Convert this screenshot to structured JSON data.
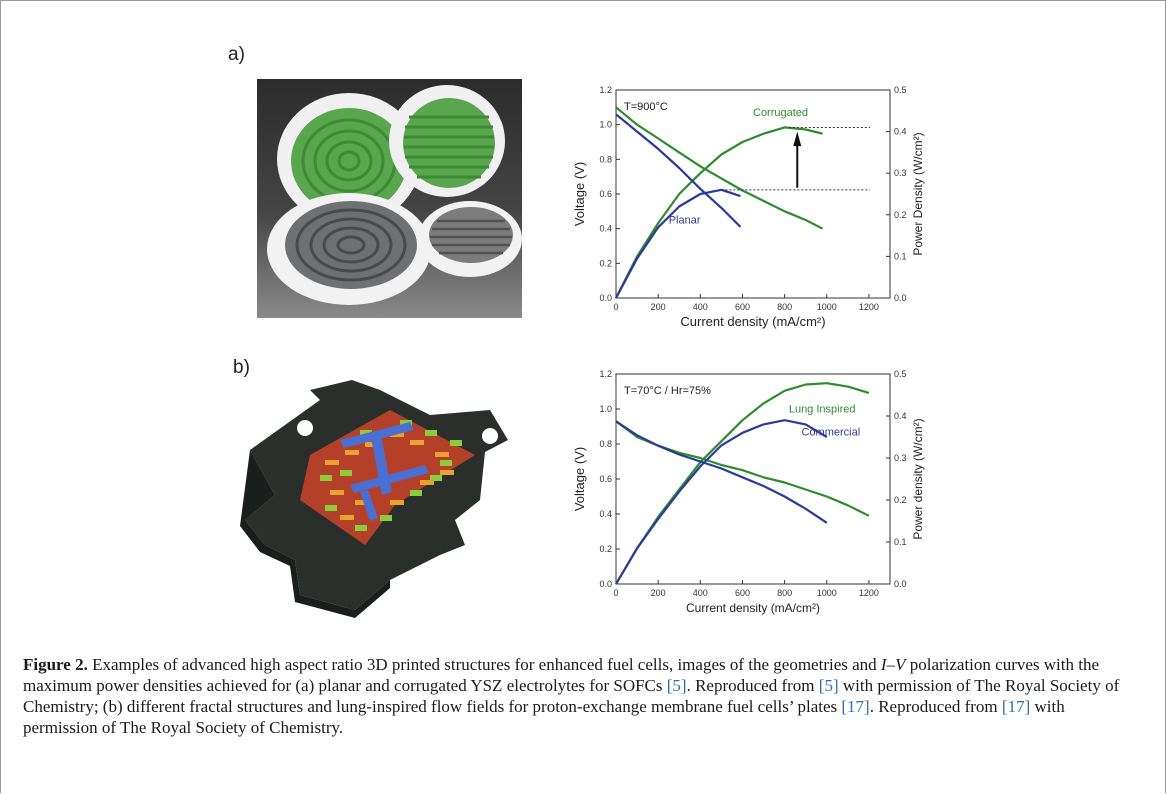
{
  "panels": {
    "a": {
      "label": "a)",
      "photo": {
        "icon": "fuel-cell-electrolyte-discs-photo",
        "colors": {
          "green": "#5aa64e",
          "white": "#f2f2f2",
          "grey": "#7c7c7c"
        }
      },
      "chart_data": {
        "type": "line",
        "title": "",
        "annotation": "T=900°C",
        "xlabel": "Current density (mA/cm²)",
        "ylabel": "Voltage (V)",
        "y2label": "Power Density (W/cm²)",
        "xlim": [
          0,
          1300
        ],
        "ylim": [
          0,
          1.2
        ],
        "y2lim": [
          0,
          0.5
        ],
        "xticks": [
          "0",
          "200",
          "400",
          "600",
          "800",
          "1000",
          "1200"
        ],
        "yticks": [
          "0.0",
          "0.2",
          "0.4",
          "0.6",
          "0.8",
          "1.0",
          "1.2"
        ],
        "y2ticks": [
          "0.0",
          "0.1",
          "0.2",
          "0.3",
          "0.4",
          "0.5"
        ],
        "series": [
          {
            "name": "Corrugated",
            "color": "#2e8b2e",
            "axis": "voltage",
            "x": [
              0,
              100,
              200,
              300,
              400,
              500,
              600,
              700,
              800,
              900,
              980
            ],
            "y": [
              1.1,
              1.0,
              0.92,
              0.84,
              0.76,
              0.69,
              0.62,
              0.56,
              0.5,
              0.45,
              0.4
            ]
          },
          {
            "name": "Corrugated",
            "color": "#2e8b2e",
            "axis": "power",
            "x": [
              0,
              100,
              200,
              300,
              400,
              500,
              600,
              700,
              800,
              900,
              980
            ],
            "y": [
              0.0,
              0.1,
              0.18,
              0.25,
              0.3,
              0.345,
              0.375,
              0.395,
              0.41,
              0.405,
              0.395
            ]
          },
          {
            "name": "Planar",
            "color": "#2b3a9a",
            "axis": "voltage",
            "x": [
              0,
              100,
              200,
              300,
              400,
              500,
              590
            ],
            "y": [
              1.06,
              0.96,
              0.86,
              0.75,
              0.63,
              0.52,
              0.41
            ]
          },
          {
            "name": "Planar",
            "color": "#2b3a9a",
            "axis": "power",
            "x": [
              0,
              100,
              200,
              300,
              400,
              500,
              590
            ],
            "y": [
              0.0,
              0.095,
              0.17,
              0.22,
              0.25,
              0.26,
              0.245
            ]
          }
        ],
        "labels": [
          "Corrugated",
          "Planar"
        ]
      }
    },
    "b": {
      "label": "b)",
      "photo": {
        "icon": "lung-inspired-flow-field-plate-photo",
        "colors": {
          "plate": "#2a2f2c",
          "blue": "#4a6fd0",
          "green": "#8ccc3a",
          "orange": "#e8a030",
          "red": "#c23a2a"
        }
      },
      "chart_data": {
        "type": "line",
        "title": "",
        "annotation": "T=70°C / Hr=75%",
        "xlabel": "Current density (mA/cm²)",
        "ylabel": "Voltage (V)",
        "y2label": "Power density (W/cm²)",
        "xlim": [
          0,
          1300
        ],
        "ylim": [
          0,
          1.2
        ],
        "y2lim": [
          0,
          0.5
        ],
        "xticks": [
          "0",
          "200",
          "400",
          "600",
          "800",
          "1000",
          "1200"
        ],
        "yticks": [
          "0.0",
          "0.2",
          "0.4",
          "0.6",
          "0.8",
          "1.0",
          "1.2"
        ],
        "y2ticks": [
          "0.0",
          "0.1",
          "0.2",
          "0.3",
          "0.4",
          "0.5"
        ],
        "series": [
          {
            "name": "Lung Inspired",
            "color": "#2e8b2e",
            "axis": "voltage",
            "x": [
              0,
              100,
              200,
              300,
              400,
              500,
              600,
              700,
              800,
              900,
              1000,
              1100,
              1200
            ],
            "y": [
              0.93,
              0.84,
              0.79,
              0.75,
              0.72,
              0.68,
              0.65,
              0.61,
              0.58,
              0.54,
              0.5,
              0.45,
              0.39
            ]
          },
          {
            "name": "Lung Inspired",
            "color": "#2e8b2e",
            "axis": "power",
            "x": [
              0,
              100,
              200,
              300,
              400,
              500,
              600,
              700,
              800,
              900,
              1000,
              1100,
              1200
            ],
            "y": [
              0.0,
              0.085,
              0.16,
              0.225,
              0.29,
              0.34,
              0.39,
              0.43,
              0.46,
              0.475,
              0.478,
              0.47,
              0.455
            ]
          },
          {
            "name": "Commercial",
            "color": "#2b3a9a",
            "axis": "voltage",
            "x": [
              0,
              100,
              200,
              300,
              400,
              500,
              600,
              700,
              800,
              900,
              1000
            ],
            "y": [
              0.93,
              0.85,
              0.79,
              0.74,
              0.7,
              0.66,
              0.61,
              0.56,
              0.5,
              0.43,
              0.35
            ]
          },
          {
            "name": "Commercial",
            "color": "#2b3a9a",
            "axis": "power",
            "x": [
              0,
              100,
              200,
              300,
              400,
              500,
              600,
              700,
              800,
              900,
              1000
            ],
            "y": [
              0.0,
              0.085,
              0.155,
              0.22,
              0.28,
              0.33,
              0.36,
              0.38,
              0.39,
              0.38,
              0.35
            ]
          }
        ],
        "labels": [
          "Lung Inspired",
          "Commercial"
        ]
      }
    }
  },
  "caption": {
    "figure_label": "Figure 2.",
    "segments": [
      " Examples of advanced high aspect ratio 3D printed structures for enhanced fuel cells, images of the geometries and ",
      "I–V",
      " polarization curves with the maximum power densities achieved for (a) planar and corrugated YSZ electrolytes for SOFCs ",
      "[5]",
      ". Reproduced from ",
      "[5]",
      " with permission of The Royal Society of Chemistry; (b) different fractal structures and lung-inspired flow fields for proton-exchange membrane fuel cells’ plates ",
      "[17]",
      ". Reproduced from ",
      "[17]",
      " with permission of The Royal Society of Chemistry."
    ]
  }
}
